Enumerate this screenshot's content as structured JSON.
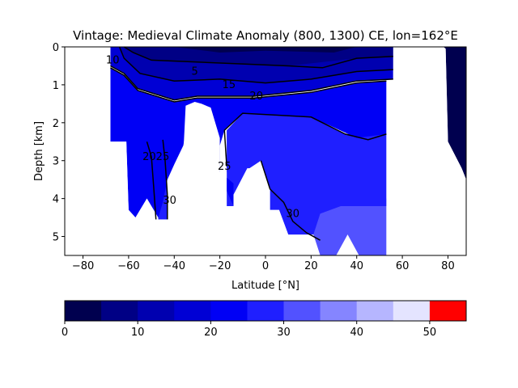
{
  "chart_data": {
    "type": "filled-contour",
    "title": "Vintage: Medieval Climate Anomaly (800, 1300) CE, lon=162°E",
    "xlabel": "Latitude [°N]",
    "ylabel": "Depth [km]",
    "xlim": [
      -88,
      88
    ],
    "ylim": [
      5.5,
      0
    ],
    "xticks": [
      -80,
      -60,
      -40,
      -20,
      0,
      20,
      40,
      60,
      80
    ],
    "yticks": [
      0,
      1,
      2,
      3,
      4,
      5
    ],
    "contour_levels": [
      5,
      10,
      15,
      20,
      25,
      30
    ],
    "contour_labels": [
      {
        "text": "10",
        "x": -67,
        "depth": 0.35
      },
      {
        "text": "5",
        "x": -31,
        "depth": 0.65
      },
      {
        "text": "15",
        "x": -16,
        "depth": 1.0
      },
      {
        "text": "20",
        "x": -4,
        "depth": 1.3
      },
      {
        "text": "2025",
        "x": -48,
        "depth": 2.9
      },
      {
        "text": "25",
        "x": -18,
        "depth": 3.15
      },
      {
        "text": "30",
        "x": -42,
        "depth": 4.05
      },
      {
        "text": "30",
        "x": 12,
        "depth": 4.4
      }
    ],
    "colorbar": {
      "bounds": [
        0,
        5,
        10,
        15,
        20,
        25,
        30,
        35,
        40,
        45,
        50,
        55
      ],
      "ticks": [
        0,
        10,
        20,
        30,
        40,
        50
      ],
      "colors": [
        "#00004f",
        "#000085",
        "#0000b0",
        "#0000d5",
        "#0000f5",
        "#1f1fff",
        "#5252ff",
        "#8585ff",
        "#b6b6ff",
        "#e4e4ff",
        "#ff0000"
      ]
    }
  }
}
